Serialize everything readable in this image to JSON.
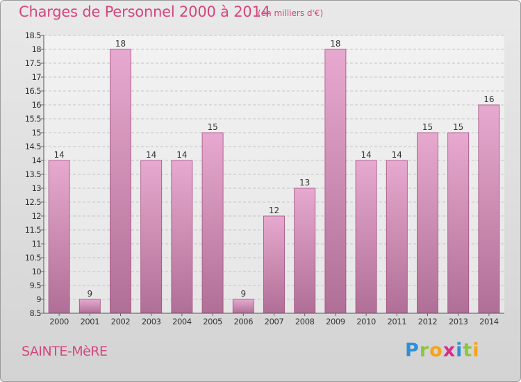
{
  "header": {
    "title": "Charges de Personnel 2000 à 2014",
    "subtitle": "(en milliers d'€)"
  },
  "footer": {
    "town": "SAINTE-MèRE",
    "logo_letters": [
      "P",
      "r",
      "o",
      "x",
      "i",
      "t",
      "i"
    ],
    "logo_colors": [
      "#2f8fd6",
      "#8cc63f",
      "#f7a21b",
      "#d92b8c",
      "#2f8fd6",
      "#8cc63f",
      "#f7a21b"
    ]
  },
  "colors": {
    "bar_fill_top": "#e7a9cf",
    "bar_fill_bottom": "#b06f96",
    "bar_stroke": "#a34f82",
    "text": "#333333",
    "accent": "#d4467e"
  },
  "chart_data": {
    "type": "bar",
    "title": "Charges de Personnel 2000 à 2014",
    "subtitle": "(en milliers d'€)",
    "categories": [
      "2000",
      "2001",
      "2002",
      "2003",
      "2004",
      "2005",
      "2006",
      "2007",
      "2008",
      "2009",
      "2010",
      "2011",
      "2012",
      "2013",
      "2014"
    ],
    "values": [
      14,
      9,
      18,
      14,
      14,
      15,
      9,
      12,
      13,
      18,
      14,
      14,
      15,
      15,
      16
    ],
    "xlabel": "",
    "ylabel": "",
    "ylim": [
      8.5,
      18.5
    ],
    "yticks": [
      "8.5",
      "9",
      "9.5",
      "10",
      "10.5",
      "11",
      "11.5",
      "12",
      "12.5",
      "13",
      "13.5",
      "14",
      "14.5",
      "15",
      "15.5",
      "16",
      "16.5",
      "17",
      "17.5",
      "18",
      "18.5"
    ],
    "grid": true
  }
}
